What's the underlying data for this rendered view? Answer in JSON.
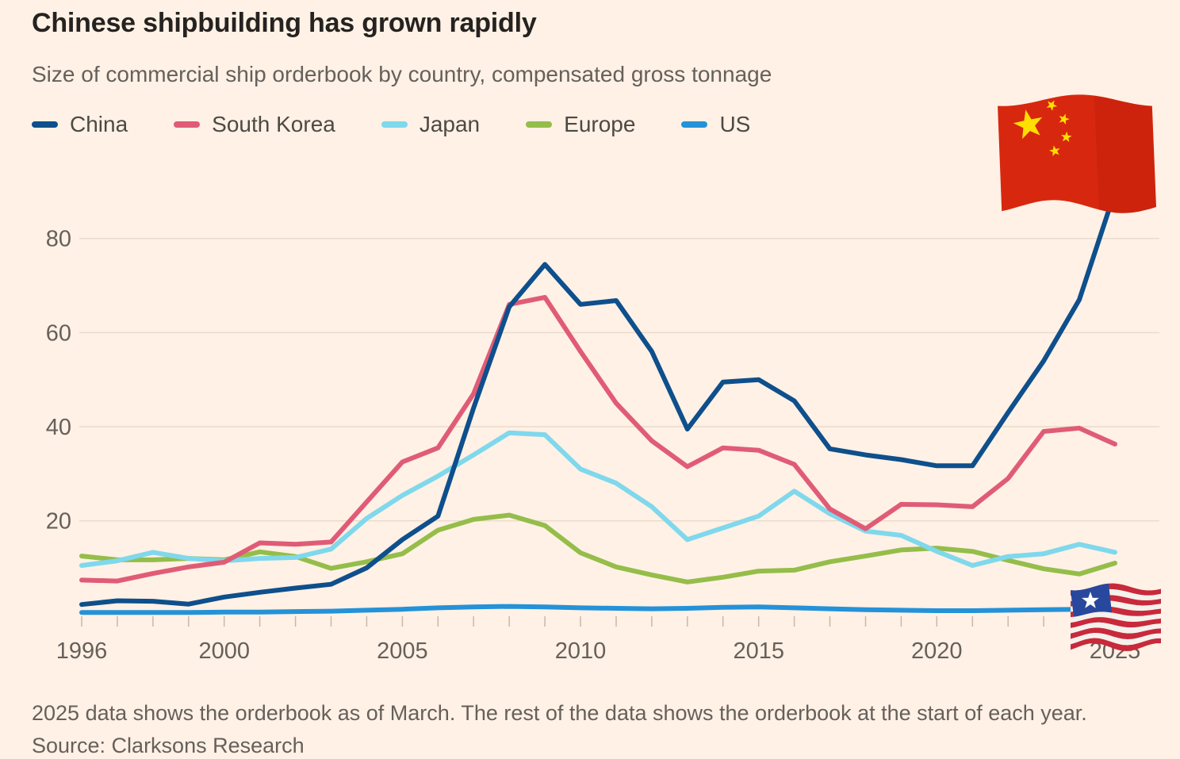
{
  "footer": {
    "note": "2025 data shows the orderbook as of March. The rest of the data shows the orderbook at the start of each year.",
    "source": "Source: Clarksons Research"
  },
  "icons": {
    "china_flag": "china-flag-icon",
    "liberia_flag": "liberia-flag-icon"
  },
  "colors": {
    "background": "#FFF1E5",
    "title_text": "#262220",
    "muted_text": "#66605B",
    "legend_text": "#4D4945",
    "gridline": "#EADACB",
    "tick": "#C9B8A9",
    "china_flag_red": "#D7280F",
    "china_flag_yellow": "#FFDE02",
    "liberia_red": "#C8293B",
    "liberia_blue": "#27489D"
  },
  "chart_data": {
    "type": "line",
    "title": "Chinese shipbuilding has grown rapidly",
    "subtitle": "Size of commercial ship orderbook by country, compensated gross tonnage",
    "xlabel": "",
    "ylabel": "",
    "grid": "horizontal",
    "legend_position": "top",
    "ylim": [
      0,
      95
    ],
    "y_ticks": [
      20,
      40,
      60,
      80
    ],
    "x_tick_labels": [
      1996,
      2000,
      2005,
      2010,
      2015,
      2020,
      2025
    ],
    "x": [
      1996,
      1997,
      1998,
      1999,
      2000,
      2001,
      2002,
      2003,
      2004,
      2005,
      2006,
      2007,
      2008,
      2009,
      2010,
      2011,
      2012,
      2013,
      2014,
      2015,
      2016,
      2017,
      2018,
      2019,
      2020,
      2021,
      2022,
      2023,
      2024,
      2025
    ],
    "series": [
      {
        "name": "China",
        "color": "#0E4F8C",
        "values": [
          2.2,
          3.0,
          2.9,
          2.3,
          3.8,
          4.8,
          5.7,
          6.5,
          10,
          16,
          21,
          44,
          65.5,
          74.5,
          66,
          66.8,
          56,
          39.5,
          49.5,
          50,
          45.5,
          35.3,
          34,
          33,
          31.7,
          31.7,
          43,
          54,
          67,
          90
        ]
      },
      {
        "name": "South Korea",
        "color": "#E05C76",
        "values": [
          7.4,
          7.2,
          8.8,
          10.2,
          11.2,
          15.3,
          15.0,
          15.5,
          24,
          32.5,
          35.5,
          47,
          66,
          67.5,
          56,
          45,
          37,
          31.5,
          35.5,
          35,
          32,
          22.5,
          18.3,
          23.5,
          23.4,
          23,
          29,
          39,
          39.7,
          36.3
        ]
      },
      {
        "name": "Japan",
        "color": "#7FD8EC",
        "values": [
          10.5,
          11.5,
          13.3,
          12.0,
          11.5,
          12.0,
          12.2,
          14,
          20.5,
          25.4,
          29.5,
          34,
          38.7,
          38.3,
          31,
          28,
          23,
          16,
          18.5,
          21,
          26.3,
          21.5,
          17.8,
          16.9,
          13.5,
          10.5,
          12.4,
          13,
          15,
          13.3
        ]
      },
      {
        "name": "Europe",
        "color": "#95BD4A",
        "values": [
          12.5,
          11.7,
          11.7,
          12.0,
          11.7,
          13.4,
          12.4,
          9.9,
          11.3,
          13.0,
          18.0,
          20.3,
          21.2,
          19.0,
          13.2,
          10.2,
          8.5,
          7.0,
          8.0,
          9.3,
          9.5,
          11.3,
          12.5,
          13.8,
          14.2,
          13.5,
          11.6,
          9.8,
          8.7,
          11.0
        ]
      },
      {
        "name": "US",
        "color": "#2492D8",
        "values": [
          0.5,
          0.5,
          0.5,
          0.5,
          0.6,
          0.6,
          0.7,
          0.8,
          1.0,
          1.2,
          1.5,
          1.7,
          1.8,
          1.7,
          1.5,
          1.4,
          1.3,
          1.4,
          1.6,
          1.7,
          1.5,
          1.3,
          1.1,
          1.0,
          0.9,
          0.9,
          1.0,
          1.1,
          1.2,
          1.0
        ]
      }
    ],
    "annotations": [
      "Chinese flag marks the end of the China line (2025)",
      "Single-star Liberia-style flag marks the end of the US line (2025)"
    ]
  }
}
